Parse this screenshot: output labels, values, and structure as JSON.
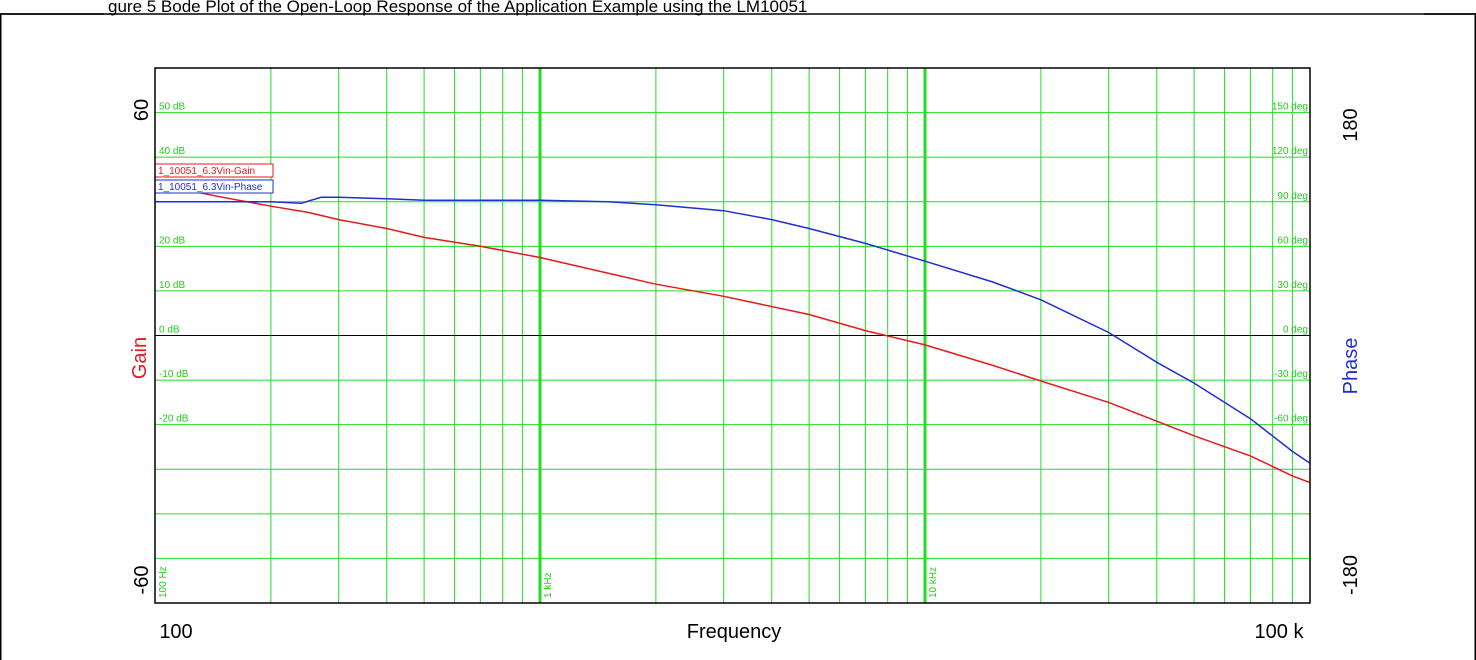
{
  "caption": "gure 5 Bode Plot of the Open-Loop Response of the Application Example using the LM10051",
  "colors": {
    "grid": "#22dd22",
    "gain": "#e41a1c",
    "phase": "#1f2fd1",
    "zero": "#000000"
  },
  "chart_data": {
    "type": "line",
    "xscale": "log",
    "xlim": [
      100,
      100000
    ],
    "xlabel": "Frequency",
    "x_tick_labels": [
      "100",
      "100 k"
    ],
    "x_grid_labels": [
      "100 Hz",
      "1 kHz",
      "10 kHz"
    ],
    "left_axis": {
      "label": "Gain",
      "ylim": [
        -60,
        60
      ],
      "tick_labels": [
        "60",
        "-60"
      ],
      "grid_labels": [
        "50 dB",
        "40 dB",
        "20 dB",
        "10 dB",
        "0 dB",
        "-10 dB",
        "-20 dB"
      ]
    },
    "right_axis": {
      "label": "Phase",
      "ylim": [
        -180,
        180
      ],
      "tick_labels": [
        "180",
        "-180"
      ],
      "grid_labels": [
        "150 deg",
        "120 deg",
        "90 deg",
        "60 deg",
        "30 deg",
        "0 deg",
        "-30 deg",
        "-60 deg"
      ]
    },
    "grid": true,
    "series": [
      {
        "name": "1_10051_6.3Vin-Gain",
        "axis": "left",
        "x": [
          100,
          150,
          200,
          250,
          300,
          400,
          500,
          700,
          1000,
          1500,
          2000,
          3000,
          5000,
          7000,
          10000,
          15000,
          20000,
          30000,
          50000,
          70000,
          90000,
          100000
        ],
        "y": [
          34,
          31,
          29,
          27.6,
          26,
          24,
          22,
          20,
          17.5,
          14,
          11.5,
          8.8,
          4.7,
          1.1,
          -2.1,
          -6.7,
          -10.2,
          -15,
          -22.5,
          -27,
          -31.5,
          -33
        ]
      },
      {
        "name": "1_10051_6.3Vin-Phase",
        "axis": "right",
        "x": [
          100,
          200,
          240,
          270,
          300,
          400,
          500,
          700,
          1000,
          1500,
          2000,
          3000,
          4000,
          5000,
          7000,
          10000,
          15000,
          20000,
          30000,
          40000,
          50000,
          70000,
          90000,
          100000
        ],
        "y": [
          90,
          90,
          89,
          93,
          93,
          92,
          91,
          91,
          91,
          90,
          88,
          84,
          78,
          72,
          62,
          50,
          36,
          24,
          2,
          -18,
          -32,
          -56,
          -78,
          -86
        ]
      }
    ]
  }
}
